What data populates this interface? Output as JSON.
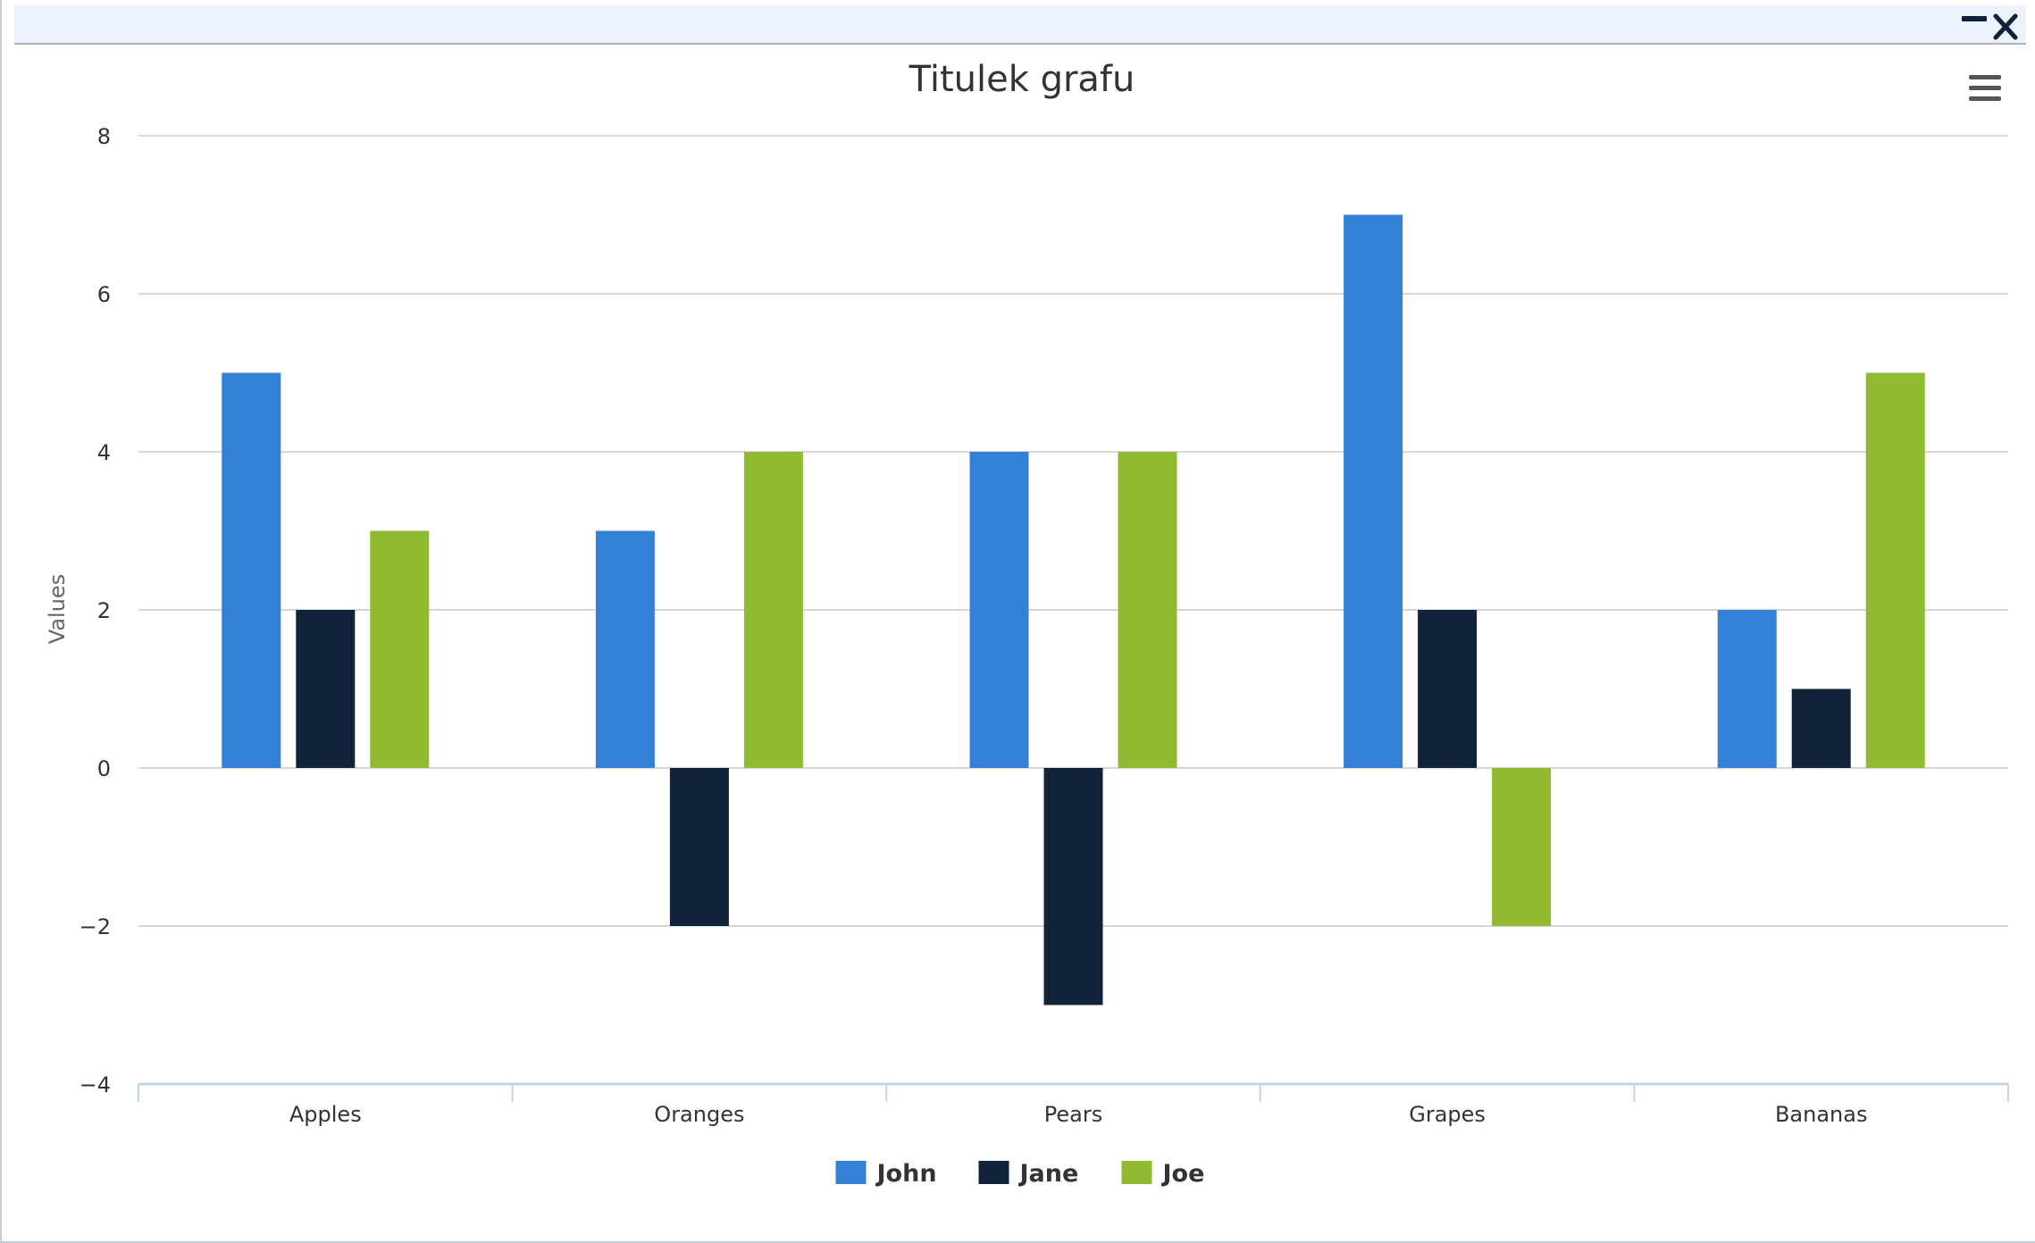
{
  "window": {
    "minimize_icon": "minimize-icon",
    "close_icon": "close-icon"
  },
  "menu_icon": "hamburger-menu-icon",
  "colors": {
    "john": "#3381d6",
    "jane": "#10233a",
    "joe": "#8fba32",
    "grid": "#d8d8d8",
    "axis": "#c3d4e6",
    "text": "#333333"
  },
  "chart_data": {
    "type": "bar",
    "title": "Titulek grafu",
    "xlabel": "",
    "ylabel": "Values",
    "categories": [
      "Apples",
      "Oranges",
      "Pears",
      "Grapes",
      "Bananas"
    ],
    "ylim": [
      -4,
      8
    ],
    "yticks": [
      -4,
      -2,
      0,
      2,
      4,
      6,
      8
    ],
    "ytick_labels": [
      "−4",
      "−2",
      "0",
      "2",
      "4",
      "6",
      "8"
    ],
    "grid": true,
    "legend_position": "bottom-center",
    "series": [
      {
        "name": "John",
        "values": [
          5,
          3,
          4,
          7,
          2
        ]
      },
      {
        "name": "Jane",
        "values": [
          2,
          -2,
          -3,
          2,
          1
        ]
      },
      {
        "name": "Joe",
        "values": [
          3,
          4,
          4,
          -2,
          5
        ]
      }
    ]
  }
}
